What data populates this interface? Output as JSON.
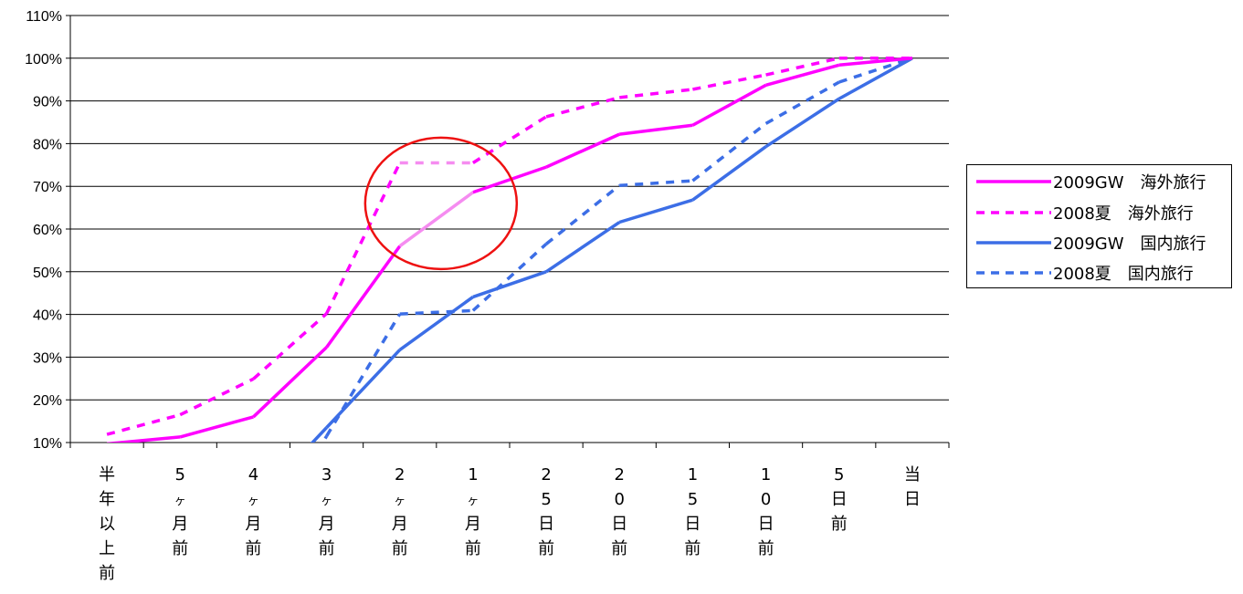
{
  "chart_data": {
    "type": "line",
    "categories": [
      "半年以上前",
      "5ヶ月前",
      "4ヶ月前",
      "3ヶ月前",
      "2ヶ月前",
      "1ヶ月前",
      "25日前",
      "20日前",
      "15日前",
      "10日前",
      "5日前",
      "当日"
    ],
    "y_ticks": [
      "10%",
      "20%",
      "30%",
      "40%",
      "50%",
      "60%",
      "70%",
      "80%",
      "90%",
      "100%",
      "110%"
    ],
    "ylim": [
      10,
      110
    ],
    "grid": true,
    "legend_position": "right",
    "series": [
      {
        "name": "2009GW　海外旅行",
        "color": "#ff00ff",
        "dash": false,
        "values": [
          9.7,
          11.3,
          16.0,
          32.3,
          56.0,
          68.6,
          74.5,
          82.2,
          84.3,
          93.7,
          98.4,
          100.0
        ]
      },
      {
        "name": "2008夏　海外旅行",
        "color": "#ff00ff",
        "dash": true,
        "values": [
          11.9,
          16.5,
          24.9,
          40.2,
          75.5,
          75.5,
          86.3,
          90.8,
          92.7,
          96.1,
          100.0,
          100.0
        ]
      },
      {
        "name": "2009GW　国内旅行",
        "color": "#3c6ee6",
        "dash": false,
        "values": [
          null,
          null,
          null,
          13.5,
          31.7,
          44.1,
          50.0,
          61.6,
          66.8,
          79.3,
          90.5,
          100.0
        ]
      },
      {
        "name": "2008夏　国内旅行",
        "color": "#3c6ee6",
        "dash": true,
        "values": [
          null,
          null,
          null,
          11.5,
          40.1,
          40.9,
          56.5,
          70.2,
          71.3,
          84.7,
          94.4,
          100.0
        ]
      }
    ],
    "highlight_segment_color": "#f58cf0",
    "annotation": {
      "shape": "circle",
      "color": "#ee1111",
      "around_categories": [
        "2ヶ月前",
        "1ヶ月前"
      ]
    }
  }
}
